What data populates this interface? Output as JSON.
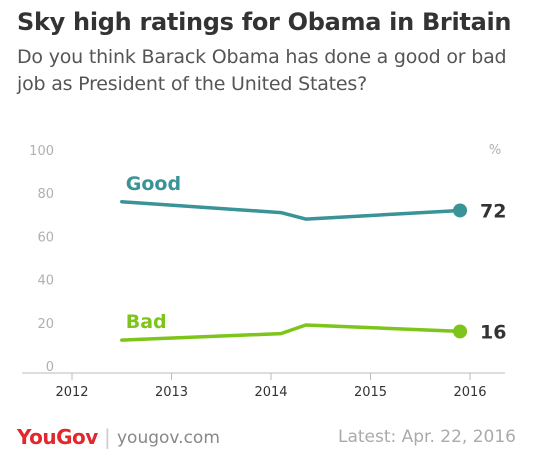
{
  "title": "Sky high ratings for Obama in Britain",
  "subtitle": "Do you think Barack Obama has done a good or bad job as President of the United States?",
  "unit_label": "%",
  "footer": {
    "brand": "YouGov",
    "separator": "|",
    "url": "yougov.com",
    "date": "Latest: Apr. 22, 2016"
  },
  "colors": {
    "good": "#3a9396",
    "bad": "#7dc41b",
    "axis": "#bbbbbb"
  },
  "chart_data": {
    "type": "line",
    "ylim": [
      0,
      100
    ],
    "yticks": [
      0,
      20,
      40,
      60,
      80,
      100
    ],
    "xlim": [
      2012,
      2016
    ],
    "xticks": [
      2012,
      2013,
      2014,
      2015,
      2016
    ],
    "grid": false,
    "series": [
      {
        "name": "Good",
        "end_label": "72",
        "points": [
          [
            2012.5,
            76
          ],
          [
            2014.1,
            71
          ],
          [
            2014.35,
            68
          ],
          [
            2015.9,
            72
          ]
        ]
      },
      {
        "name": "Bad",
        "end_label": "16",
        "points": [
          [
            2012.5,
            12
          ],
          [
            2014.1,
            15
          ],
          [
            2014.35,
            19
          ],
          [
            2015.9,
            16
          ]
        ]
      }
    ]
  }
}
